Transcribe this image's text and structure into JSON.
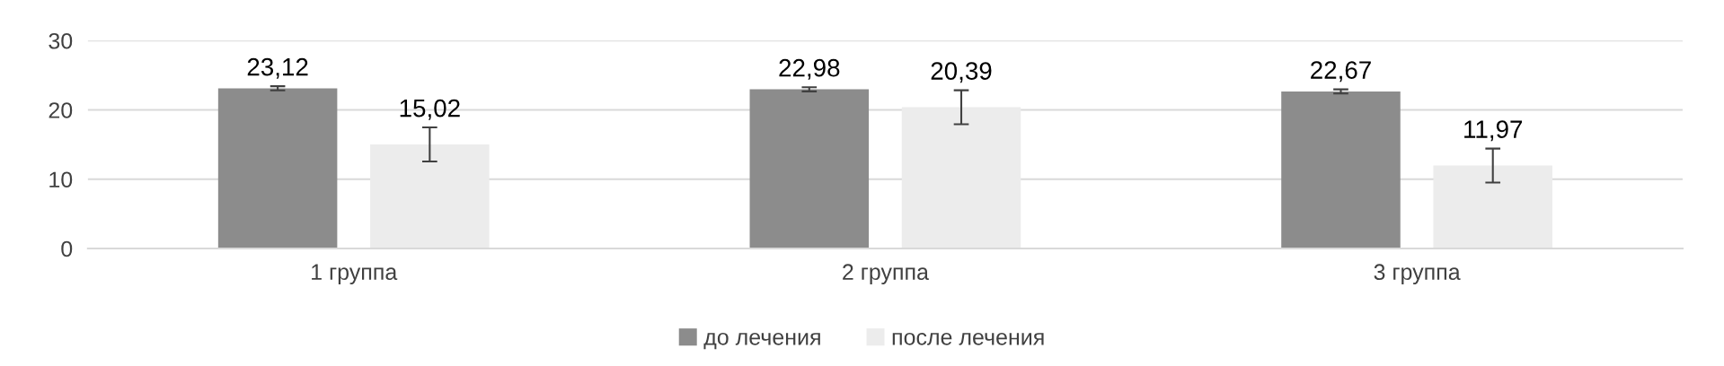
{
  "chart_data": {
    "type": "bar",
    "categories": [
      "1 группа",
      "2 группа",
      "3 группа"
    ],
    "series": [
      {
        "name": "до лечения",
        "color": "#8c8c8c",
        "values": [
          23.12,
          22.98,
          22.67
        ],
        "errors": [
          0.3,
          0.3,
          0.3
        ],
        "value_labels": [
          "23,12",
          "22,98",
          "22,67"
        ]
      },
      {
        "name": "после лечения",
        "color": "#ececec",
        "values": [
          15.02,
          20.39,
          11.97
        ],
        "errors": [
          2.45,
          2.45,
          2.45
        ],
        "value_labels": [
          "15,02",
          "20,39",
          "11,97"
        ]
      }
    ],
    "ylim": [
      0,
      30
    ],
    "yticks": [
      0,
      10,
      20,
      30
    ],
    "grid": "y",
    "legend": "bottom"
  }
}
